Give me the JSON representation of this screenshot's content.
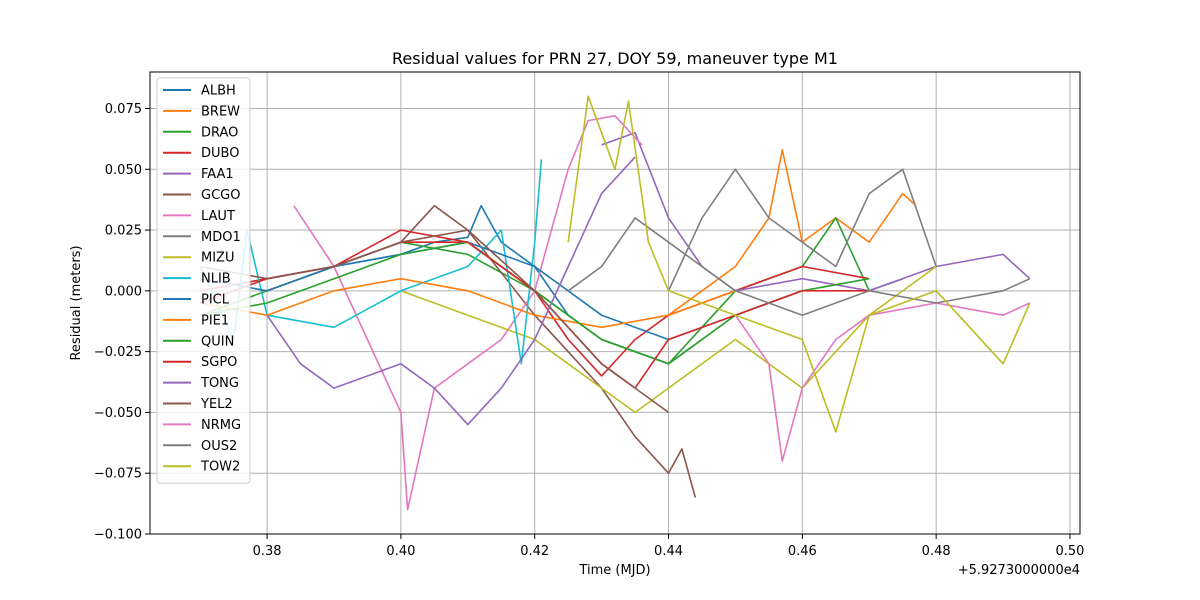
{
  "chart_data": {
    "type": "line",
    "title": "Residual values for PRN 27, DOY 59, maneuver type M1",
    "xlabel": "Time (MJD)",
    "ylabel": "Residual (meters)",
    "x_offset_label": "+5.9273000000e4",
    "xlim": [
      0.3625,
      0.5015
    ],
    "ylim": [
      -0.1,
      0.09
    ],
    "x_ticks": [
      0.38,
      0.4,
      0.42,
      0.44,
      0.46,
      0.48,
      0.5
    ],
    "x_tick_labels": [
      "0.38",
      "0.40",
      "0.42",
      "0.44",
      "0.46",
      "0.48",
      "0.50"
    ],
    "y_ticks": [
      -0.1,
      -0.075,
      -0.05,
      -0.025,
      0.0,
      0.025,
      0.05,
      0.075
    ],
    "y_tick_labels": [
      "−0.100",
      "−0.075",
      "−0.050",
      "−0.025",
      "0.000",
      "0.025",
      "0.050",
      "0.075"
    ],
    "grid": true,
    "legend_position": "upper-left",
    "series": [
      {
        "name": "ALBH",
        "color": "#1f77b4",
        "x": [
          0.37,
          0.38,
          0.39,
          0.4,
          0.405,
          0.41,
          0.412,
          0.415,
          0.42,
          0.425,
          0.43,
          0.435,
          0.44,
          0.445
        ],
        "y": [
          0.0,
          0.005,
          0.01,
          0.015,
          0.02,
          0.022,
          0.035,
          0.02,
          0.01,
          -0.01,
          -0.02,
          -0.025,
          -0.03,
          -0.02
        ]
      },
      {
        "name": "BREW",
        "color": "#ff7f0e",
        "x": [
          0.44,
          0.445,
          0.45,
          0.455,
          0.457,
          0.46,
          0.465,
          0.47,
          0.475,
          0.477
        ],
        "y": [
          -0.01,
          0.0,
          0.01,
          0.03,
          0.058,
          0.02,
          0.03,
          0.02,
          0.04,
          0.035
        ]
      },
      {
        "name": "DRAO",
        "color": "#2ca02c",
        "x": [
          0.37,
          0.38,
          0.39,
          0.4,
          0.41,
          0.42,
          0.43,
          0.44,
          0.45,
          0.46,
          0.465,
          0.47,
          0.475
        ],
        "y": [
          -0.01,
          0.0,
          0.01,
          0.02,
          0.015,
          0.0,
          -0.02,
          -0.03,
          0.0,
          0.01,
          0.03,
          0.0,
          0.005
        ]
      },
      {
        "name": "DUBO",
        "color": "#d62728",
        "x": [
          0.37,
          0.38,
          0.39,
          0.4,
          0.41,
          0.42,
          0.425,
          0.43,
          0.435,
          0.44,
          0.45,
          0.46,
          0.47
        ],
        "y": [
          0.0,
          0.005,
          0.01,
          0.02,
          0.02,
          0.0,
          -0.02,
          -0.035,
          -0.02,
          -0.01,
          0.0,
          0.01,
          0.005
        ]
      },
      {
        "name": "FAA1",
        "color": "#9467bd",
        "x": [
          0.43,
          0.435,
          0.44,
          0.445,
          0.45,
          0.46,
          0.47,
          0.48,
          0.49,
          0.494
        ],
        "y": [
          0.06,
          0.065,
          0.03,
          0.01,
          0.0,
          0.005,
          0.0,
          0.01,
          0.015,
          0.005
        ]
      },
      {
        "name": "GCGO",
        "color": "#8c564b",
        "x": [
          0.38,
          0.39,
          0.4,
          0.405,
          0.41,
          0.42,
          0.43,
          0.435,
          0.44,
          0.442,
          0.444
        ],
        "y": [
          0.0,
          0.01,
          0.02,
          0.035,
          0.025,
          -0.01,
          -0.04,
          -0.06,
          -0.075,
          -0.065,
          -0.085
        ]
      },
      {
        "name": "LAUT",
        "color": "#e377c2",
        "x": [
          0.384,
          0.39,
          0.395,
          0.4,
          0.401,
          0.405,
          0.41,
          0.415,
          0.42,
          0.425,
          0.428,
          0.432,
          0.436
        ],
        "y": [
          0.035,
          0.01,
          -0.02,
          -0.05,
          -0.09,
          -0.04,
          -0.03,
          -0.02,
          0.0,
          0.05,
          0.07,
          0.072,
          0.06
        ]
      },
      {
        "name": "MDO1",
        "color": "#7f7f7f",
        "x": [
          0.44,
          0.445,
          0.45,
          0.455,
          0.46,
          0.465,
          0.47,
          0.475,
          0.48
        ],
        "y": [
          0.0,
          0.03,
          0.05,
          0.03,
          0.02,
          0.01,
          0.04,
          0.05,
          0.01
        ]
      },
      {
        "name": "MIZU",
        "color": "#bcbd22",
        "x": [
          0.4,
          0.41,
          0.42,
          0.425,
          0.43,
          0.435,
          0.44,
          0.45,
          0.46,
          0.47,
          0.48
        ],
        "y": [
          0.0,
          -0.01,
          -0.02,
          -0.03,
          -0.04,
          -0.05,
          -0.04,
          -0.02,
          -0.04,
          -0.01,
          0.01
        ]
      },
      {
        "name": "NLIB",
        "color": "#17becf",
        "x": [
          0.37,
          0.375,
          0.377,
          0.38,
          0.39,
          0.4,
          0.41,
          0.415,
          0.418,
          0.42,
          0.421
        ],
        "y": [
          0.01,
          -0.02,
          0.025,
          -0.01,
          -0.015,
          0.0,
          0.01,
          0.025,
          -0.03,
          0.02,
          0.054
        ]
      },
      {
        "name": "PICL",
        "color": "#1f77b4",
        "x": [
          0.37,
          0.38,
          0.39,
          0.4,
          0.41,
          0.42,
          0.43,
          0.44,
          0.45,
          0.46
        ],
        "y": [
          0.005,
          0.0,
          0.01,
          0.015,
          0.02,
          0.01,
          -0.01,
          -0.02,
          -0.01,
          0.0
        ]
      },
      {
        "name": "PIE1",
        "color": "#ff7f0e",
        "x": [
          0.37,
          0.38,
          0.39,
          0.4,
          0.41,
          0.42,
          0.43,
          0.44,
          0.45
        ],
        "y": [
          -0.005,
          -0.01,
          0.0,
          0.005,
          0.0,
          -0.01,
          -0.015,
          -0.01,
          0.0
        ]
      },
      {
        "name": "QUIN",
        "color": "#2ca02c",
        "x": [
          0.37,
          0.38,
          0.39,
          0.4,
          0.41,
          0.42,
          0.43,
          0.44,
          0.45,
          0.46,
          0.47
        ],
        "y": [
          -0.01,
          -0.005,
          0.005,
          0.015,
          0.02,
          0.0,
          -0.02,
          -0.03,
          -0.01,
          0.0,
          0.005
        ]
      },
      {
        "name": "SGPO",
        "color": "#d62728",
        "x": [
          0.37,
          0.38,
          0.39,
          0.4,
          0.41,
          0.42,
          0.43,
          0.435,
          0.44,
          0.45,
          0.46,
          0.47
        ],
        "y": [
          -0.005,
          0.005,
          0.01,
          0.025,
          0.02,
          0.0,
          -0.03,
          -0.04,
          -0.02,
          -0.01,
          0.0,
          0.0
        ]
      },
      {
        "name": "TONG",
        "color": "#9467bd",
        "x": [
          0.38,
          0.385,
          0.39,
          0.4,
          0.405,
          0.41,
          0.415,
          0.42,
          0.425,
          0.43,
          0.435
        ],
        "y": [
          -0.01,
          -0.03,
          -0.04,
          -0.03,
          -0.04,
          -0.055,
          -0.04,
          -0.02,
          0.01,
          0.04,
          0.055
        ]
      },
      {
        "name": "YEL2",
        "color": "#8c564b",
        "x": [
          0.37,
          0.38,
          0.39,
          0.4,
          0.41,
          0.42,
          0.43,
          0.44
        ],
        "y": [
          0.01,
          0.005,
          0.01,
          0.02,
          0.025,
          0.0,
          -0.03,
          -0.05
        ]
      },
      {
        "name": "NRMG",
        "color": "#e377c2",
        "x": [
          0.45,
          0.455,
          0.457,
          0.46,
          0.465,
          0.47,
          0.48,
          0.49,
          0.494
        ],
        "y": [
          -0.01,
          -0.03,
          -0.07,
          -0.04,
          -0.02,
          -0.01,
          -0.005,
          -0.01,
          -0.005
        ]
      },
      {
        "name": "OUS2",
        "color": "#7f7f7f",
        "x": [
          0.425,
          0.43,
          0.435,
          0.44,
          0.445,
          0.45,
          0.46,
          0.47,
          0.48,
          0.49,
          0.494
        ],
        "y": [
          0.0,
          0.01,
          0.03,
          0.02,
          0.01,
          0.0,
          -0.01,
          0.0,
          -0.005,
          0.0,
          0.005
        ]
      },
      {
        "name": "TOW2",
        "color": "#bcbd22",
        "x": [
          0.425,
          0.428,
          0.432,
          0.434,
          0.437,
          0.44,
          0.45,
          0.46,
          0.465,
          0.47,
          0.48,
          0.49,
          0.494
        ],
        "y": [
          0.02,
          0.08,
          0.05,
          0.078,
          0.02,
          0.0,
          -0.01,
          -0.02,
          -0.058,
          -0.01,
          0.0,
          -0.03,
          -0.005
        ]
      }
    ]
  }
}
